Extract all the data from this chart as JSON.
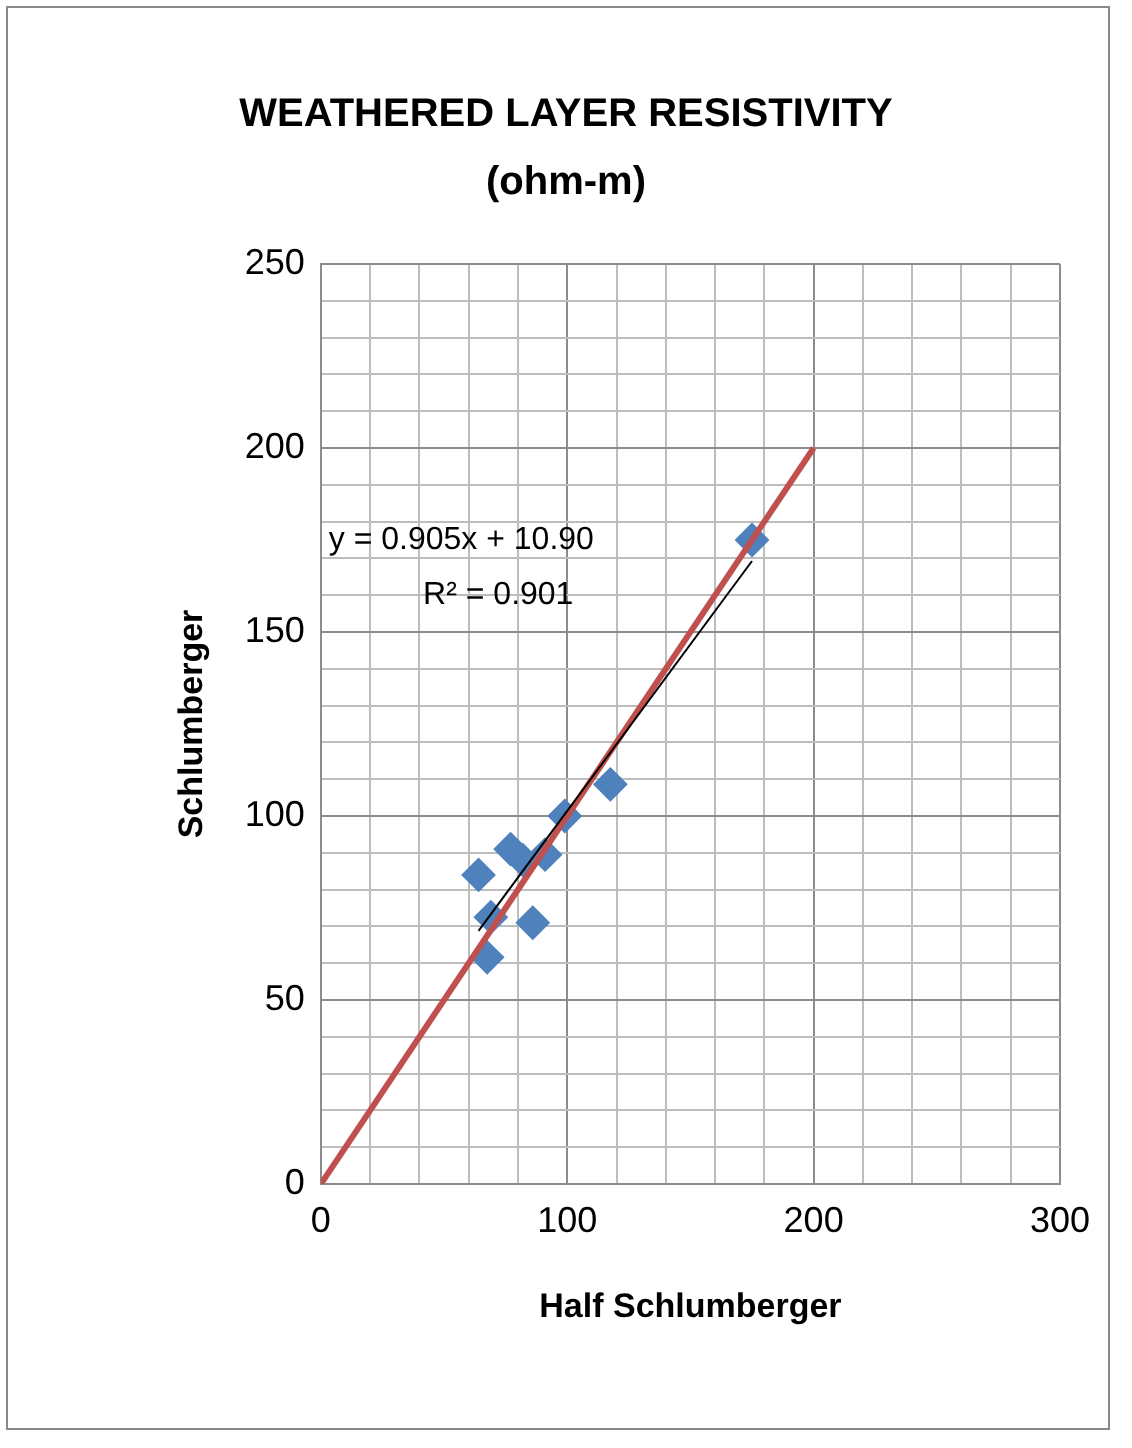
{
  "chart_data": {
    "type": "scatter",
    "title": "WEATHERED LAYER RESISTIVITY (ohm-m)",
    "xlabel": "Half Schlumberger",
    "ylabel": "Schlumberger",
    "series": [
      {
        "color": "#4f81bd",
        "marker": "diamond",
        "x": [
          64,
          69,
          67.5,
          77,
          82,
          91,
          86,
          99,
          117.5,
          175
        ],
        "values": [
          84,
          72.5,
          61.6,
          91,
          88,
          89.5,
          71,
          100,
          108.6,
          175
        ]
      },
      {
        "type": "line",
        "color": "#c0504d",
        "marker": "none",
        "x": [
          0,
          200
        ],
        "values": [
          0,
          200
        ]
      },
      {
        "type": "line",
        "color": "#000000",
        "marker": "none",
        "x": [
          64,
          175
        ],
        "values": [
          68.8,
          169.3
        ]
      }
    ],
    "annotations": [
      "y = 0.905x + 10.90",
      "R² = 0.901"
    ],
    "xlim": [
      0,
      300
    ],
    "xticks": [
      0,
      {
        "value": 20,
        "label": null
      },
      {
        "value": 40,
        "label": null
      },
      {
        "value": 60,
        "label": null
      },
      {
        "value": 80,
        "label": null
      },
      100,
      {
        "value": 120,
        "label": null
      },
      {
        "value": 140,
        "label": null
      },
      {
        "value": 160,
        "label": null
      },
      {
        "value": 180,
        "label": null
      },
      200,
      {
        "value": 220,
        "label": null
      },
      {
        "value": 240,
        "label": null
      },
      {
        "value": 260,
        "label": null
      },
      {
        "value": 280,
        "label": null
      },
      300
    ],
    "ylim": [
      0,
      250
    ],
    "yticks": [
      0,
      {
        "value": 10,
        "label": null
      },
      {
        "value": 20,
        "label": null
      },
      {
        "value": 30,
        "label": null
      },
      {
        "value": 40,
        "label": null
      },
      50,
      {
        "value": 60,
        "label": null
      },
      {
        "value": 70,
        "label": null
      },
      {
        "value": 80,
        "label": null
      },
      {
        "value": 90,
        "label": null
      },
      100,
      {
        "value": 110,
        "label": null
      },
      {
        "value": 120,
        "label": null
      },
      {
        "value": 130,
        "label": null
      },
      {
        "value": 140,
        "label": null
      },
      150,
      {
        "value": 160,
        "label": null
      },
      {
        "value": 170,
        "label": null
      },
      {
        "value": 180,
        "label": null
      },
      {
        "value": 190,
        "label": null
      },
      200,
      {
        "value": 210,
        "label": null
      },
      {
        "value": 220,
        "label": null
      },
      {
        "value": 230,
        "label": null
      },
      {
        "value": 240,
        "label": null
      },
      250
    ],
    "grid": true,
    "legend": false
  }
}
